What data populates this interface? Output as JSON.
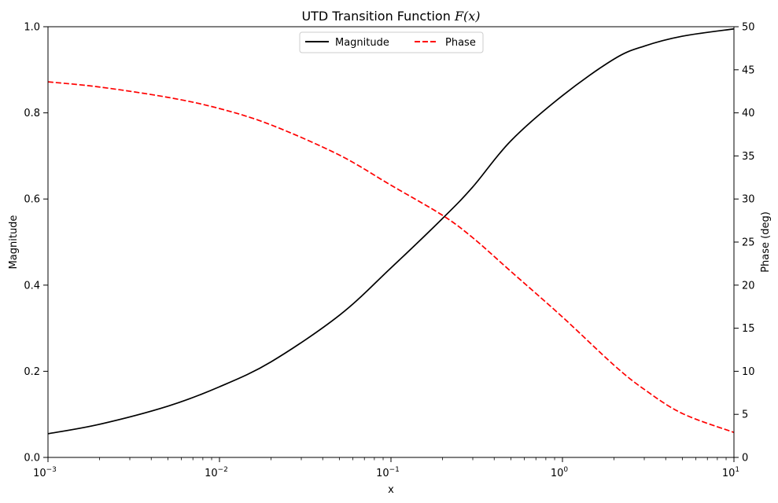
{
  "chart_data": {
    "type": "line",
    "title_prefix": "UTD Transition Function ",
    "title_math": "F(x)",
    "xlabel": "x",
    "ylabel_left": "Magnitude",
    "ylabel_right": "Phase (deg)",
    "xscale": "log",
    "xlim": [
      0.001,
      10
    ],
    "ylim_left": [
      0,
      1
    ],
    "ylim_right": [
      0,
      50
    ],
    "x_tick_labels": [
      {
        "base": "10",
        "exp": "−3"
      },
      {
        "base": "10",
        "exp": "−2"
      },
      {
        "base": "10",
        "exp": "−1"
      },
      {
        "base": "10",
        "exp": "0"
      },
      {
        "base": "10",
        "exp": "1"
      }
    ],
    "y_left_ticks": [
      "0.0",
      "0.2",
      "0.4",
      "0.6",
      "0.8",
      "1.0"
    ],
    "y_right_ticks": [
      "0",
      "5",
      "10",
      "15",
      "20",
      "25",
      "30",
      "35",
      "40",
      "45",
      "50"
    ],
    "legend": {
      "placement": "top-center",
      "entries": [
        {
          "label": "Magnitude",
          "color": "#000000",
          "style": "solid"
        },
        {
          "label": "Phase",
          "color": "#ff0000",
          "style": "dashed"
        }
      ]
    },
    "series": [
      {
        "name": "Magnitude",
        "axis": "left",
        "color": "#000000",
        "style": "solid",
        "x": [
          0.001,
          0.002,
          0.005,
          0.01,
          0.02,
          0.05,
          0.1,
          0.2,
          0.3,
          0.5,
          1,
          2,
          3,
          5,
          10
        ],
        "y": [
          0.055,
          0.077,
          0.119,
          0.164,
          0.222,
          0.33,
          0.44,
          0.555,
          0.628,
          0.735,
          0.84,
          0.925,
          0.955,
          0.978,
          0.995
        ]
      },
      {
        "name": "Phase",
        "axis": "right",
        "color": "#ff0000",
        "style": "dashed",
        "x": [
          0.001,
          0.002,
          0.005,
          0.01,
          0.02,
          0.05,
          0.1,
          0.2,
          0.3,
          0.5,
          1,
          2,
          3,
          5,
          10
        ],
        "y": [
          43.6,
          43.0,
          41.8,
          40.5,
          38.6,
          35.1,
          31.6,
          28.1,
          25.5,
          21.6,
          16.3,
          10.7,
          7.9,
          5.1,
          2.9
        ]
      }
    ]
  }
}
